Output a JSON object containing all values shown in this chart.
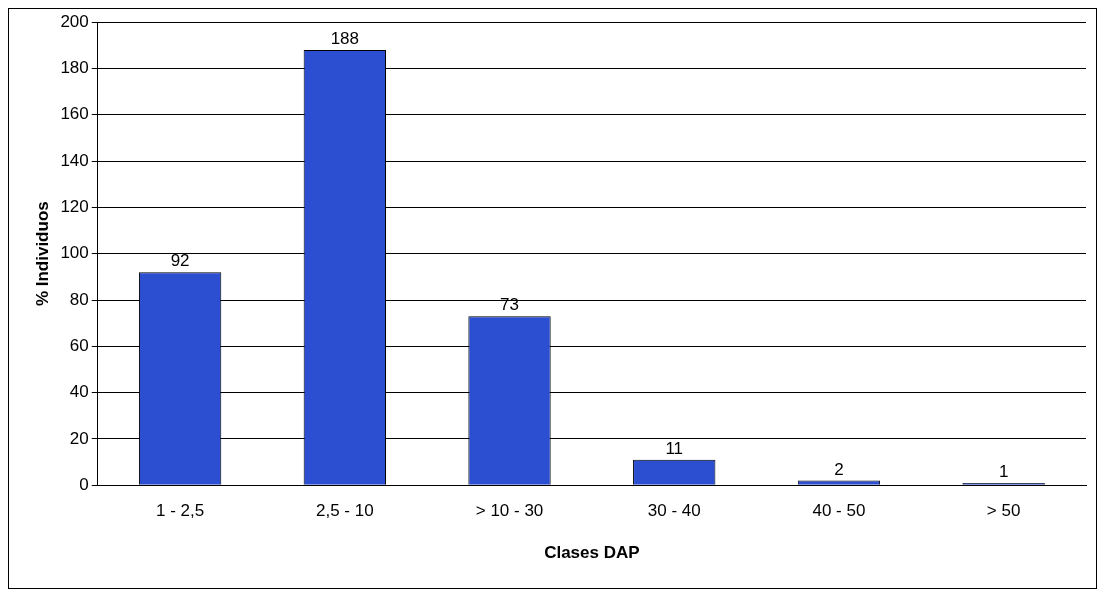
{
  "chart_data": {
    "type": "bar",
    "xlabel": "Clases DAP",
    "ylabel": "% Individuos",
    "categories": [
      "1 - 2,5",
      "2,5 - 10",
      "> 10 - 30",
      "30 - 40",
      "40 - 50",
      "> 50"
    ],
    "values": [
      92,
      188,
      73,
      11,
      2,
      1
    ],
    "color": "#2b4fd0",
    "ylim": [
      0,
      200
    ],
    "yticks": [
      0,
      20,
      40,
      60,
      80,
      100,
      120,
      140,
      160,
      180,
      200
    ],
    "grid": "y",
    "data_labels": true,
    "legend": false
  }
}
